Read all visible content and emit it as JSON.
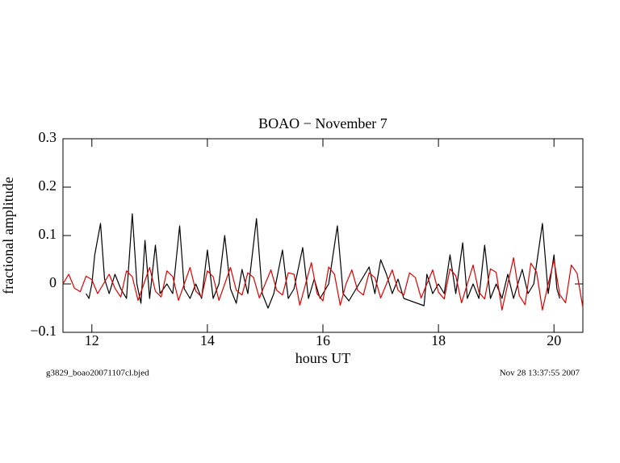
{
  "chart_data": {
    "type": "line",
    "title": "BOAO − November 7",
    "xlabel": "hours UT",
    "ylabel": "fractional amplitude",
    "notes": [
      "g3829_boao20071107cl.bjed",
      "Nov 28 13:37:55 2007"
    ],
    "xlim": [
      11.5,
      20.5
    ],
    "xticks": [
      12,
      14,
      16,
      18,
      20
    ],
    "ylim": [
      -0.1,
      0.3
    ],
    "yticks": [
      {
        "value": -0.1,
        "label": "−0.1"
      },
      0,
      0.1,
      0.2,
      0.3
    ],
    "series": [
      {
        "color": "#000000",
        "x": [
          11.9,
          11.95,
          12.0,
          12.05,
          12.15,
          12.22,
          12.3,
          12.4,
          12.5,
          12.6,
          12.7,
          12.78,
          12.85,
          12.92,
          13.0,
          13.1,
          13.18,
          13.3,
          13.4,
          13.52,
          13.6,
          13.7,
          13.8,
          13.9,
          14.0,
          14.1,
          14.2,
          14.3,
          14.4,
          14.5,
          14.6,
          14.7,
          14.85,
          14.95,
          15.05,
          15.15,
          15.3,
          15.4,
          15.5,
          15.65,
          15.75,
          15.85,
          15.95,
          16.1,
          16.25,
          16.35,
          16.45,
          16.8,
          16.9,
          17.0,
          17.1,
          17.2,
          17.3,
          17.4,
          17.75,
          17.8,
          17.9,
          18.0,
          18.1,
          18.2,
          18.3,
          18.42,
          18.5,
          18.6,
          18.7,
          18.8,
          18.9,
          19.0,
          19.1,
          19.2,
          19.3,
          19.45,
          19.55,
          19.65,
          19.8,
          19.9,
          20.0,
          20.05,
          20.1
        ],
        "values": [
          -0.02,
          -0.03,
          0.0,
          0.06,
          0.125,
          0.01,
          -0.02,
          0.02,
          -0.01,
          -0.03,
          0.145,
          0.0,
          -0.04,
          0.09,
          -0.03,
          0.08,
          -0.02,
          0.0,
          -0.02,
          0.12,
          -0.01,
          -0.03,
          0.0,
          -0.03,
          0.07,
          -0.03,
          0.0,
          0.1,
          -0.01,
          -0.04,
          0.03,
          -0.02,
          0.135,
          -0.02,
          -0.05,
          -0.02,
          0.07,
          -0.03,
          -0.01,
          0.075,
          -0.03,
          0.01,
          -0.03,
          0.0,
          0.12,
          -0.02,
          -0.035,
          0.035,
          -0.02,
          0.05,
          0.02,
          -0.02,
          0.01,
          -0.03,
          -0.045,
          0.02,
          -0.02,
          0.0,
          -0.02,
          0.06,
          -0.02,
          0.085,
          -0.03,
          0.0,
          -0.03,
          0.08,
          -0.03,
          0.0,
          -0.03,
          0.02,
          -0.03,
          0.03,
          -0.02,
          0.0,
          0.125,
          -0.02,
          0.06,
          -0.01,
          -0.03
        ]
      },
      {
        "color": "#e00000",
        "x": [
          11.5,
          11.6,
          11.7,
          11.8,
          11.9,
          12.0,
          12.1,
          12.2,
          12.3,
          12.4,
          12.5,
          12.6,
          12.7,
          12.8,
          12.9,
          13.0,
          13.1,
          13.2,
          13.3,
          13.4,
          13.5,
          13.6,
          13.7,
          13.8,
          13.9,
          14.0,
          14.1,
          14.2,
          14.3,
          14.4,
          14.5,
          14.6,
          14.7,
          14.8,
          14.9,
          15.0,
          15.1,
          15.2,
          15.3,
          15.4,
          15.5,
          15.6,
          15.7,
          15.8,
          15.9,
          16.0,
          16.1,
          16.2,
          16.3,
          16.4,
          16.5,
          16.6,
          16.7,
          16.8,
          16.9,
          17.0,
          17.1,
          17.2,
          17.3,
          17.4,
          17.5,
          17.6,
          17.7,
          17.8,
          17.9,
          18.0,
          18.1,
          18.2,
          18.3,
          18.4,
          18.5,
          18.6,
          18.7,
          18.8,
          18.9,
          19.0,
          19.1,
          19.2,
          19.3,
          19.4,
          19.5,
          19.6,
          19.7,
          19.8,
          19.9,
          20.0,
          20.1,
          20.2,
          20.3,
          20.4,
          20.5
        ],
        "values": [
          0,
          0.02,
          -0.009,
          -0.016,
          0.016,
          0.009,
          -0.02,
          0,
          0.02,
          -0.009,
          -0.027,
          0.027,
          0.015,
          -0.034,
          0,
          0.034,
          -0.015,
          -0.027,
          0.027,
          0.015,
          -0.034,
          0,
          0.034,
          -0.015,
          -0.027,
          0.027,
          0.015,
          -0.034,
          0,
          0.034,
          -0.013,
          -0.023,
          0.023,
          0.013,
          -0.029,
          0,
          0.029,
          -0.013,
          -0.023,
          0.023,
          0.02,
          -0.044,
          0,
          0.044,
          -0.02,
          -0.035,
          0.035,
          0.02,
          -0.044,
          0,
          0.029,
          -0.013,
          -0.023,
          0.023,
          0.013,
          -0.029,
          0,
          0.029,
          -0.013,
          -0.023,
          0.023,
          0.013,
          -0.029,
          0,
          0.029,
          -0.017,
          -0.031,
          0.031,
          0.017,
          -0.039,
          0,
          0.039,
          -0.017,
          -0.031,
          0.031,
          0.024,
          -0.054,
          0,
          0.054,
          -0.024,
          -0.043,
          0.043,
          0.024,
          -0.054,
          0,
          0.049,
          -0.022,
          -0.039,
          0.039,
          0.022,
          -0.049
        ]
      }
    ]
  }
}
